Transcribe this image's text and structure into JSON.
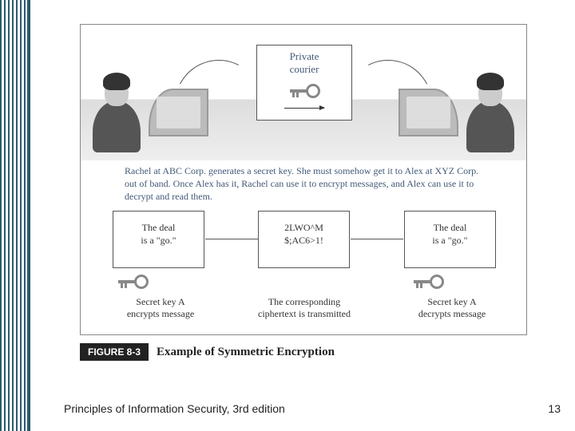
{
  "courier_label_l1": "Private",
  "courier_label_l2": "courier",
  "description": "Rachel at ABC Corp. generates a secret key. She must somehow get it to Alex at XYZ Corp. out of band. Once Alex has it, Rachel can use it to encrypt messages, and Alex can use it to decrypt and read them.",
  "box_a_l1": "The deal",
  "box_a_l2": "is a \"go.\"",
  "box_b_l1": "2LWO^M",
  "box_b_l2": "$;AC6>1!",
  "box_c_l1": "The deal",
  "box_c_l2": "is a \"go.\"",
  "cap_a_l1": "Secret key A",
  "cap_a_l2": "encrypts message",
  "cap_b_l1": "The corresponding",
  "cap_b_l2": "ciphertext is transmitted",
  "cap_c_l1": "Secret key A",
  "cap_c_l2": "decrypts message",
  "figure_badge": "FIGURE 8-3",
  "figure_title": "Example of Symmetric Encryption",
  "footer": "Principles of Information Security, 3rd edition",
  "page_number": "13",
  "colors": {
    "border_accent": "#2a5a6a",
    "text_primary": "#435a78",
    "box_border": "#555555",
    "key_color": "#888888"
  }
}
